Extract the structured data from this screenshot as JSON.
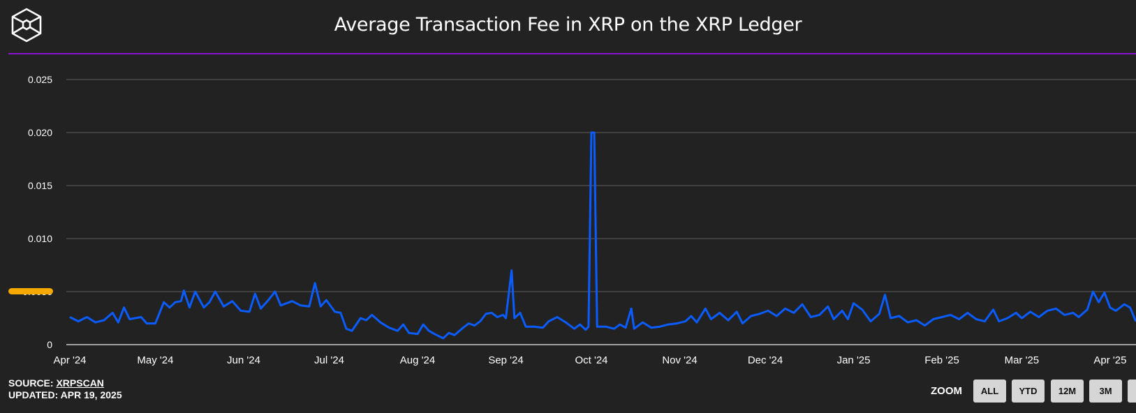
{
  "header": {
    "title": "Average Transaction Fee in XRP on the XRP Ledger",
    "logo_icon": "hexagon-cube-logo-icon"
  },
  "footer": {
    "source_prefix": "SOURCE: ",
    "source_link": "XRPSCAN",
    "updated": "UPDATED: APR 19, 2025"
  },
  "zoom": {
    "label": "ZOOM",
    "buttons": [
      "ALL",
      "YTD",
      "12M",
      "3M"
    ]
  },
  "colors": {
    "background": "#222222",
    "accent_rule": "#8a12d0",
    "series": "#0a5cff",
    "marker": "#f5a800",
    "grid": "#444444"
  },
  "chart_data": {
    "type": "line",
    "title": "Average Transaction Fee in XRP on the XRP Ledger",
    "xlabel": "",
    "ylabel": "",
    "ylim": [
      0,
      0.025
    ],
    "xlim": [
      "2024-04-01",
      "2025-04-10"
    ],
    "y_ticks": [
      "0",
      "0.005",
      "0.010",
      "0.015",
      "0.020",
      "0.025"
    ],
    "y_tick_labels": [
      "0",
      "0.0050",
      "0.010",
      "0.015",
      "0.020",
      "0.025"
    ],
    "highlighted_y_tick": "0.0050",
    "x_ticks": [
      {
        "date": "2024-04-01",
        "label": "Apr '24"
      },
      {
        "date": "2024-05-01",
        "label": "May '24"
      },
      {
        "date": "2024-06-01",
        "label": "Jun '24"
      },
      {
        "date": "2024-07-01",
        "label": "Jul '24"
      },
      {
        "date": "2024-08-01",
        "label": "Aug '24"
      },
      {
        "date": "2024-09-01",
        "label": "Sep '24"
      },
      {
        "date": "2024-10-01",
        "label": "Oct '24"
      },
      {
        "date": "2024-11-01",
        "label": "Nov '24"
      },
      {
        "date": "2024-12-01",
        "label": "Dec '24"
      },
      {
        "date": "2025-01-01",
        "label": "Jan '25"
      },
      {
        "date": "2025-02-01",
        "label": "Feb '25"
      },
      {
        "date": "2025-03-01",
        "label": "Mar '25"
      },
      {
        "date": "2025-04-01",
        "label": "Apr '25"
      }
    ],
    "grid": true,
    "legend": "none",
    "series": [
      {
        "points": [
          [
            "2024-04-01",
            0.0026
          ],
          [
            "2024-04-04",
            0.0022
          ],
          [
            "2024-04-07",
            0.0026
          ],
          [
            "2024-04-10",
            0.0021
          ],
          [
            "2024-04-13",
            0.0023
          ],
          [
            "2024-04-16",
            0.003
          ],
          [
            "2024-04-18",
            0.0021
          ],
          [
            "2024-04-20",
            0.0035
          ],
          [
            "2024-04-22",
            0.0024
          ],
          [
            "2024-04-26",
            0.0026
          ],
          [
            "2024-04-28",
            0.002
          ],
          [
            "2024-05-01",
            0.002
          ],
          [
            "2024-05-04",
            0.004
          ],
          [
            "2024-05-06",
            0.0035
          ],
          [
            "2024-05-08",
            0.004
          ],
          [
            "2024-05-10",
            0.0041
          ],
          [
            "2024-05-11",
            0.0051
          ],
          [
            "2024-05-13",
            0.0035
          ],
          [
            "2024-05-15",
            0.005
          ],
          [
            "2024-05-18",
            0.0035
          ],
          [
            "2024-05-20",
            0.004
          ],
          [
            "2024-05-22",
            0.005
          ],
          [
            "2024-05-25",
            0.0036
          ],
          [
            "2024-05-28",
            0.0041
          ],
          [
            "2024-05-31",
            0.0032
          ],
          [
            "2024-06-03",
            0.0031
          ],
          [
            "2024-06-05",
            0.0048
          ],
          [
            "2024-06-07",
            0.0034
          ],
          [
            "2024-06-10",
            0.0043
          ],
          [
            "2024-06-12",
            0.005
          ],
          [
            "2024-06-14",
            0.0037
          ],
          [
            "2024-06-18",
            0.0041
          ],
          [
            "2024-06-21",
            0.0037
          ],
          [
            "2024-06-24",
            0.0036
          ],
          [
            "2024-06-26",
            0.0058
          ],
          [
            "2024-06-28",
            0.0036
          ],
          [
            "2024-06-30",
            0.0042
          ],
          [
            "2024-07-03",
            0.0031
          ],
          [
            "2024-07-05",
            0.003
          ],
          [
            "2024-07-07",
            0.0015
          ],
          [
            "2024-07-09",
            0.0013
          ],
          [
            "2024-07-12",
            0.0025
          ],
          [
            "2024-07-14",
            0.0023
          ],
          [
            "2024-07-16",
            0.0028
          ],
          [
            "2024-07-19",
            0.0021
          ],
          [
            "2024-07-22",
            0.0016
          ],
          [
            "2024-07-25",
            0.0013
          ],
          [
            "2024-07-27",
            0.0019
          ],
          [
            "2024-07-29",
            0.0011
          ],
          [
            "2024-08-01",
            0.001
          ],
          [
            "2024-08-03",
            0.0019
          ],
          [
            "2024-08-05",
            0.0013
          ],
          [
            "2024-08-07",
            0.001
          ],
          [
            "2024-08-10",
            0.0006
          ],
          [
            "2024-08-12",
            0.0011
          ],
          [
            "2024-08-14",
            0.0009
          ],
          [
            "2024-08-17",
            0.0016
          ],
          [
            "2024-08-19",
            0.002
          ],
          [
            "2024-08-21",
            0.0018
          ],
          [
            "2024-08-23",
            0.0022
          ],
          [
            "2024-08-25",
            0.0029
          ],
          [
            "2024-08-27",
            0.003
          ],
          [
            "2024-08-29",
            0.0026
          ],
          [
            "2024-08-31",
            0.0028
          ],
          [
            "2024-09-01",
            0.0025
          ],
          [
            "2024-09-03",
            0.007
          ],
          [
            "2024-09-04",
            0.0025
          ],
          [
            "2024-09-06",
            0.003
          ],
          [
            "2024-09-08",
            0.0017
          ],
          [
            "2024-09-11",
            0.0017
          ],
          [
            "2024-09-14",
            0.0016
          ],
          [
            "2024-09-16",
            0.0022
          ],
          [
            "2024-09-19",
            0.0026
          ],
          [
            "2024-09-22",
            0.0021
          ],
          [
            "2024-09-25",
            0.0015
          ],
          [
            "2024-09-27",
            0.0019
          ],
          [
            "2024-09-29",
            0.0014
          ],
          [
            "2024-09-30",
            0.0017
          ],
          [
            "2024-10-01",
            0.02
          ],
          [
            "2024-10-02",
            0.02
          ],
          [
            "2024-10-03",
            0.0017
          ],
          [
            "2024-10-06",
            0.0017
          ],
          [
            "2024-10-09",
            0.0015
          ],
          [
            "2024-10-11",
            0.0019
          ],
          [
            "2024-10-13",
            0.0016
          ],
          [
            "2024-10-15",
            0.0034
          ],
          [
            "2024-10-16",
            0.0015
          ],
          [
            "2024-10-19",
            0.0021
          ],
          [
            "2024-10-22",
            0.0016
          ],
          [
            "2024-10-25",
            0.0017
          ],
          [
            "2024-10-28",
            0.0019
          ],
          [
            "2024-10-31",
            0.002
          ],
          [
            "2024-11-03",
            0.0022
          ],
          [
            "2024-11-05",
            0.0027
          ],
          [
            "2024-11-07",
            0.0021
          ],
          [
            "2024-11-10",
            0.0034
          ],
          [
            "2024-11-12",
            0.0024
          ],
          [
            "2024-11-15",
            0.003
          ],
          [
            "2024-11-18",
            0.0023
          ],
          [
            "2024-11-21",
            0.0031
          ],
          [
            "2024-11-23",
            0.002
          ],
          [
            "2024-11-26",
            0.0027
          ],
          [
            "2024-11-29",
            0.0029
          ],
          [
            "2024-12-02",
            0.0032
          ],
          [
            "2024-12-05",
            0.0027
          ],
          [
            "2024-12-08",
            0.0034
          ],
          [
            "2024-12-11",
            0.003
          ],
          [
            "2024-12-14",
            0.0038
          ],
          [
            "2024-12-17",
            0.0026
          ],
          [
            "2024-12-20",
            0.0028
          ],
          [
            "2024-12-23",
            0.0036
          ],
          [
            "2024-12-25",
            0.0024
          ],
          [
            "2024-12-28",
            0.0032
          ],
          [
            "2024-12-30",
            0.0024
          ],
          [
            "2025-01-01",
            0.0039
          ],
          [
            "2025-01-04",
            0.0033
          ],
          [
            "2025-01-07",
            0.0022
          ],
          [
            "2025-01-10",
            0.0029
          ],
          [
            "2025-01-12",
            0.0047
          ],
          [
            "2025-01-14",
            0.0025
          ],
          [
            "2025-01-17",
            0.0027
          ],
          [
            "2025-01-20",
            0.0021
          ],
          [
            "2025-01-23",
            0.0023
          ],
          [
            "2025-01-26",
            0.0018
          ],
          [
            "2025-01-29",
            0.0024
          ],
          [
            "2025-02-01",
            0.0026
          ],
          [
            "2025-02-04",
            0.0028
          ],
          [
            "2025-02-07",
            0.0024
          ],
          [
            "2025-02-10",
            0.003
          ],
          [
            "2025-02-13",
            0.0024
          ],
          [
            "2025-02-16",
            0.0022
          ],
          [
            "2025-02-19",
            0.0033
          ],
          [
            "2025-02-21",
            0.0022
          ],
          [
            "2025-02-24",
            0.0025
          ],
          [
            "2025-02-27",
            0.003
          ],
          [
            "2025-03-01",
            0.0025
          ],
          [
            "2025-03-04",
            0.0031
          ],
          [
            "2025-03-07",
            0.0026
          ],
          [
            "2025-03-10",
            0.0032
          ],
          [
            "2025-03-13",
            0.0034
          ],
          [
            "2025-03-16",
            0.0028
          ],
          [
            "2025-03-19",
            0.003
          ],
          [
            "2025-03-21",
            0.0026
          ],
          [
            "2025-03-24",
            0.0033
          ],
          [
            "2025-03-26",
            0.005
          ],
          [
            "2025-03-28",
            0.004
          ],
          [
            "2025-03-30",
            0.0049
          ],
          [
            "2025-04-01",
            0.0035
          ],
          [
            "2025-04-03",
            0.0032
          ],
          [
            "2025-04-06",
            0.0038
          ],
          [
            "2025-04-08",
            0.0035
          ],
          [
            "2025-04-10",
            0.0022
          ]
        ]
      }
    ]
  }
}
